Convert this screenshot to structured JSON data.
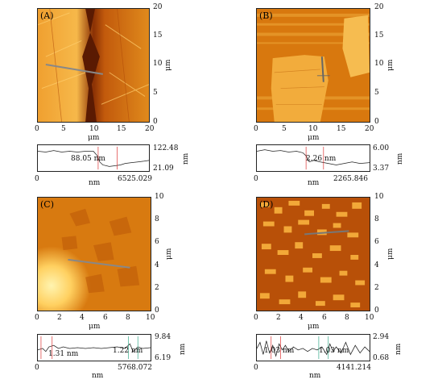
{
  "panels": {
    "A": {
      "label": "(A)",
      "x_ticks": [
        "0",
        "5",
        "10",
        "15",
        "20"
      ],
      "y_ticks": [
        "20",
        "15",
        "10",
        "5",
        "0"
      ],
      "x_unit": "μm",
      "y_unit": "μm",
      "profile": {
        "ymax": "122.48",
        "ymin": "21.09",
        "y_unit": "nm",
        "x_start": "0",
        "x_end": "6525.029",
        "x_unit": "nm",
        "annotation": "88.05 nm"
      }
    },
    "B": {
      "label": "(B)",
      "x_ticks": [
        "0",
        "5",
        "10",
        "15",
        "20"
      ],
      "y_ticks": [
        "20",
        "15",
        "10",
        "5",
        "0"
      ],
      "x_unit": "μm",
      "y_unit": "μm",
      "profile": {
        "ymax": "6.00",
        "ymin": "3.37",
        "y_unit": "nm",
        "x_start": "0",
        "x_end": "2265.846",
        "x_unit": "nm",
        "annotation": "2.26 nm"
      }
    },
    "C": {
      "label": "(C)",
      "x_ticks": [
        "0",
        "2",
        "4",
        "6",
        "8",
        "10"
      ],
      "y_ticks": [
        "10",
        "8",
        "6",
        "4",
        "2",
        "0"
      ],
      "x_unit": "μm",
      "y_unit": "μm",
      "profile": {
        "ymax": "9.84",
        "ymin": "6.19",
        "y_unit": "nm",
        "x_start": "0",
        "x_end": "5768.072",
        "x_unit": "nm",
        "annotation_left": "1.31 nm",
        "annotation_right": "1.22 nm"
      }
    },
    "D": {
      "label": "(D)",
      "x_ticks": [
        "0",
        "2",
        "4",
        "6",
        "8",
        "10"
      ],
      "y_ticks": [
        "10",
        "8",
        "6",
        "4",
        "2",
        "0"
      ],
      "x_unit": "μm",
      "y_unit": "μm",
      "profile": {
        "ymax": "2.94",
        "ymin": "0.68",
        "y_unit": "nm",
        "x_start": "0",
        "x_end": "4141.214",
        "x_unit": "nm",
        "annotation_left": "1.03 nm",
        "annotation_right": "1.03 nm"
      }
    }
  },
  "colors": {
    "dark": "#5a1a02",
    "mid": "#c4620a",
    "light": "#f6b13e",
    "bright": "#ffe08a"
  }
}
